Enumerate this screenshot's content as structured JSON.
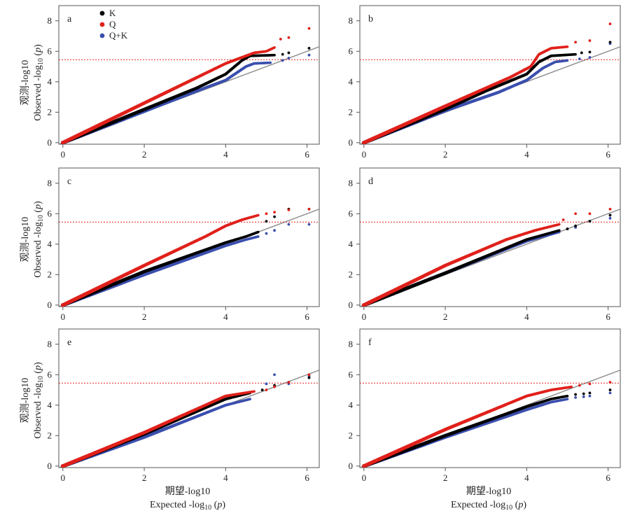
{
  "figure": {
    "y_axis_label_line1": "观测-log10",
    "y_axis_label_line2_prefix": "Observed -log",
    "y_axis_label_line2_sub": "10",
    "y_axis_label_line2_suffix_open": " (",
    "y_axis_label_line2_italic": "p",
    "y_axis_label_line2_suffix_close": ")",
    "x_axis_label_line1": "期望-log10",
    "x_axis_label_line2_prefix": "Expected -log",
    "x_axis_label_line2_sub": "10",
    "x_axis_label_line2_suffix_open": " (",
    "x_axis_label_line2_italic": "p",
    "x_axis_label_line2_suffix_close": ")",
    "legend": [
      {
        "name": "K",
        "color": "#000000"
      },
      {
        "name": "Q",
        "color": "#e0201b"
      },
      {
        "name": "Q+K",
        "color": "#3b4fae"
      }
    ],
    "colors": {
      "K": "#000000",
      "Q": "#e0201b",
      "QK": "#3b4fae",
      "reference_line": "#8a8a8a",
      "threshold_line": "#e0201b"
    }
  },
  "chart_data": [
    {
      "panel": "a",
      "type": "scatter",
      "xlim": [
        -0.1,
        6.3
      ],
      "ylim": [
        -0.1,
        9
      ],
      "xticks": [
        0,
        2,
        4,
        6
      ],
      "yticks": [
        0,
        2,
        4,
        6,
        8
      ],
      "threshold": 5.45,
      "series": [
        {
          "name": "K",
          "color": "#000000",
          "trend": [
            [
              0,
              0
            ],
            [
              3.3,
              3.6
            ],
            [
              4.0,
              4.5
            ],
            [
              4.4,
              5.4
            ],
            [
              4.6,
              5.7
            ],
            [
              5.2,
              5.75
            ]
          ],
          "tail": [
            [
              5.4,
              5.8
            ],
            [
              5.55,
              5.9
            ],
            [
              6.05,
              6.2
            ]
          ]
        },
        {
          "name": "Q",
          "color": "#e0201b",
          "trend": [
            [
              0,
              0
            ],
            [
              1,
              1.3
            ],
            [
              3,
              3.9
            ],
            [
              4.0,
              5.2
            ],
            [
              4.4,
              5.6
            ],
            [
              4.7,
              5.9
            ],
            [
              5.0,
              6.0
            ],
            [
              5.2,
              6.25
            ]
          ],
          "tail": [
            [
              5.35,
              6.8
            ],
            [
              5.55,
              6.9
            ],
            [
              6.05,
              7.5
            ]
          ]
        },
        {
          "name": "Q+K",
          "color": "#3b4fae",
          "trend": [
            [
              0,
              0
            ],
            [
              3.3,
              3.4
            ],
            [
              4.0,
              4.1
            ],
            [
              4.5,
              5.0
            ],
            [
              4.7,
              5.2
            ],
            [
              5.1,
              5.25
            ]
          ],
          "tail": [
            [
              5.4,
              5.4
            ],
            [
              5.55,
              5.55
            ],
            [
              6.05,
              5.75
            ]
          ]
        }
      ]
    },
    {
      "panel": "b",
      "type": "scatter",
      "xlim": [
        -0.1,
        6.3
      ],
      "ylim": [
        -0.1,
        9
      ],
      "xticks": [
        0,
        2,
        4,
        6
      ],
      "yticks": [
        0,
        2,
        4,
        6,
        8
      ],
      "threshold": 5.45,
      "series": [
        {
          "name": "K",
          "color": "#000000",
          "trend": [
            [
              0,
              0
            ],
            [
              2,
              2.2
            ],
            [
              3,
              3.4
            ],
            [
              4.0,
              4.5
            ],
            [
              4.3,
              5.3
            ],
            [
              4.6,
              5.7
            ],
            [
              5.2,
              5.8
            ]
          ],
          "tail": [
            [
              5.35,
              5.9
            ],
            [
              5.55,
              5.95
            ],
            [
              6.05,
              6.6
            ]
          ]
        },
        {
          "name": "Q",
          "color": "#e0201b",
          "trend": [
            [
              0,
              0
            ],
            [
              2,
              2.4
            ],
            [
              3.6,
              4.3
            ],
            [
              4.1,
              5.0
            ],
            [
              4.3,
              5.8
            ],
            [
              4.6,
              6.2
            ],
            [
              5.0,
              6.3
            ]
          ],
          "tail": [
            [
              5.2,
              6.6
            ],
            [
              5.55,
              6.7
            ],
            [
              6.05,
              7.8
            ]
          ]
        },
        {
          "name": "Q+K",
          "color": "#3b4fae",
          "trend": [
            [
              0,
              0
            ],
            [
              2,
              2.1
            ],
            [
              3.3,
              3.3
            ],
            [
              4.0,
              4.1
            ],
            [
              4.4,
              4.9
            ],
            [
              4.7,
              5.3
            ],
            [
              5.0,
              5.4
            ]
          ],
          "tail": [
            [
              5.3,
              5.5
            ],
            [
              5.55,
              5.6
            ],
            [
              6.05,
              6.5
            ]
          ]
        }
      ]
    },
    {
      "panel": "c",
      "type": "scatter",
      "xlim": [
        -0.1,
        6.3
      ],
      "ylim": [
        -0.1,
        9
      ],
      "xticks": [
        0,
        2,
        4,
        6
      ],
      "yticks": [
        0,
        2,
        4,
        6,
        8
      ],
      "threshold": 5.45,
      "series": [
        {
          "name": "K",
          "color": "#000000",
          "trend": [
            [
              0,
              0
            ],
            [
              2,
              2.2
            ],
            [
              4,
              4.1
            ],
            [
              4.5,
              4.5
            ],
            [
              4.8,
              4.8
            ]
          ],
          "tail": [
            [
              5.0,
              5.5
            ],
            [
              5.2,
              5.8
            ],
            [
              5.55,
              6.3
            ],
            [
              6.05,
              6.3
            ]
          ]
        },
        {
          "name": "Q",
          "color": "#e0201b",
          "trend": [
            [
              0,
              0
            ],
            [
              2,
              2.6
            ],
            [
              3.5,
              4.5
            ],
            [
              4.0,
              5.2
            ],
            [
              4.4,
              5.6
            ],
            [
              4.8,
              5.9
            ]
          ],
          "tail": [
            [
              5.0,
              6.0
            ],
            [
              5.2,
              6.1
            ],
            [
              5.55,
              6.25
            ],
            [
              6.05,
              6.3
            ]
          ]
        },
        {
          "name": "Q+K",
          "color": "#3b4fae",
          "trend": [
            [
              0,
              0
            ],
            [
              2,
              2.0
            ],
            [
              4,
              3.9
            ],
            [
              4.5,
              4.3
            ],
            [
              4.8,
              4.5
            ]
          ],
          "tail": [
            [
              5.0,
              4.7
            ],
            [
              5.2,
              4.9
            ],
            [
              5.55,
              5.3
            ],
            [
              6.05,
              5.3
            ]
          ]
        }
      ]
    },
    {
      "panel": "d",
      "type": "scatter",
      "xlim": [
        -0.1,
        6.3
      ],
      "ylim": [
        -0.1,
        9
      ],
      "xticks": [
        0,
        2,
        4,
        6
      ],
      "yticks": [
        0,
        2,
        4,
        6,
        8
      ],
      "threshold": 5.45,
      "series": [
        {
          "name": "K",
          "color": "#000000",
          "trend": [
            [
              0,
              0
            ],
            [
              2,
              2.1
            ],
            [
              4,
              4.3
            ],
            [
              4.8,
              4.9
            ]
          ],
          "tail": [
            [
              5.0,
              5.0
            ],
            [
              5.2,
              5.2
            ],
            [
              5.55,
              5.5
            ],
            [
              6.05,
              5.9
            ]
          ]
        },
        {
          "name": "Q",
          "color": "#e0201b",
          "trend": [
            [
              0,
              0
            ],
            [
              2,
              2.6
            ],
            [
              3.5,
              4.3
            ],
            [
              4.2,
              4.9
            ],
            [
              4.8,
              5.3
            ]
          ],
          "tail": [
            [
              4.9,
              5.6
            ],
            [
              5.2,
              6.0
            ],
            [
              5.55,
              6.0
            ],
            [
              6.05,
              6.3
            ]
          ]
        },
        {
          "name": "Q+K",
          "color": "#3b4fae",
          "trend": [
            [
              0,
              0
            ],
            [
              2,
              2.1
            ],
            [
              4,
              4.2
            ],
            [
              4.8,
              4.8
            ]
          ],
          "tail": [
            [
              5.0,
              5.0
            ],
            [
              5.2,
              5.1
            ],
            [
              5.55,
              5.5
            ],
            [
              6.05,
              5.7
            ]
          ]
        }
      ]
    },
    {
      "panel": "e",
      "type": "scatter",
      "xlim": [
        -0.1,
        6.3
      ],
      "ylim": [
        -0.1,
        9
      ],
      "xticks": [
        0,
        2,
        4,
        6
      ],
      "yticks": [
        0,
        2,
        4,
        6,
        8
      ],
      "threshold": 5.45,
      "series": [
        {
          "name": "K",
          "color": "#000000",
          "trend": [
            [
              0,
              0
            ],
            [
              2,
              2.1
            ],
            [
              4,
              4.4
            ],
            [
              4.6,
              4.8
            ]
          ],
          "tail": [
            [
              4.9,
              5.0
            ],
            [
              5.2,
              5.3
            ],
            [
              5.55,
              5.5
            ],
            [
              6.05,
              5.8
            ]
          ]
        },
        {
          "name": "Q",
          "color": "#e0201b",
          "trend": [
            [
              0,
              0
            ],
            [
              2,
              2.2
            ],
            [
              4,
              4.6
            ],
            [
              4.7,
              4.9
            ]
          ],
          "tail": [
            [
              5.0,
              5.0
            ],
            [
              5.2,
              5.2
            ],
            [
              5.55,
              5.5
            ],
            [
              6.05,
              6.0
            ]
          ]
        },
        {
          "name": "Q+K",
          "color": "#3b4fae",
          "trend": [
            [
              0,
              0
            ],
            [
              2,
              1.9
            ],
            [
              4,
              4.0
            ],
            [
              4.6,
              4.4
            ]
          ],
          "tail": [
            [
              5.0,
              5.4
            ],
            [
              5.2,
              6.0
            ],
            [
              5.55,
              5.4
            ],
            [
              6.05,
              5.9
            ]
          ]
        }
      ]
    },
    {
      "panel": "f",
      "type": "scatter",
      "xlim": [
        -0.1,
        6.3
      ],
      "ylim": [
        -0.1,
        9
      ],
      "xticks": [
        0,
        2,
        4,
        6
      ],
      "yticks": [
        0,
        2,
        4,
        6,
        8
      ],
      "threshold": 5.45,
      "series": [
        {
          "name": "K",
          "color": "#000000",
          "trend": [
            [
              0,
              0
            ],
            [
              2,
              2.0
            ],
            [
              4,
              3.9
            ],
            [
              4.6,
              4.4
            ],
            [
              5.0,
              4.6
            ]
          ],
          "tail": [
            [
              5.2,
              4.7
            ],
            [
              5.4,
              4.75
            ],
            [
              5.55,
              4.8
            ],
            [
              6.05,
              5.0
            ]
          ]
        },
        {
          "name": "Q",
          "color": "#e0201b",
          "trend": [
            [
              0,
              0
            ],
            [
              2,
              2.4
            ],
            [
              4,
              4.6
            ],
            [
              4.6,
              5.0
            ],
            [
              5.1,
              5.2
            ]
          ],
          "tail": [
            [
              5.3,
              5.3
            ],
            [
              5.55,
              5.4
            ],
            [
              6.05,
              5.5
            ]
          ]
        },
        {
          "name": "Q+K",
          "color": "#3b4fae",
          "trend": [
            [
              0,
              0
            ],
            [
              2,
              1.9
            ],
            [
              4,
              3.7
            ],
            [
              4.6,
              4.2
            ],
            [
              5.0,
              4.4
            ]
          ],
          "tail": [
            [
              5.2,
              4.5
            ],
            [
              5.4,
              4.55
            ],
            [
              5.55,
              4.6
            ],
            [
              6.05,
              4.8
            ]
          ]
        }
      ]
    }
  ]
}
